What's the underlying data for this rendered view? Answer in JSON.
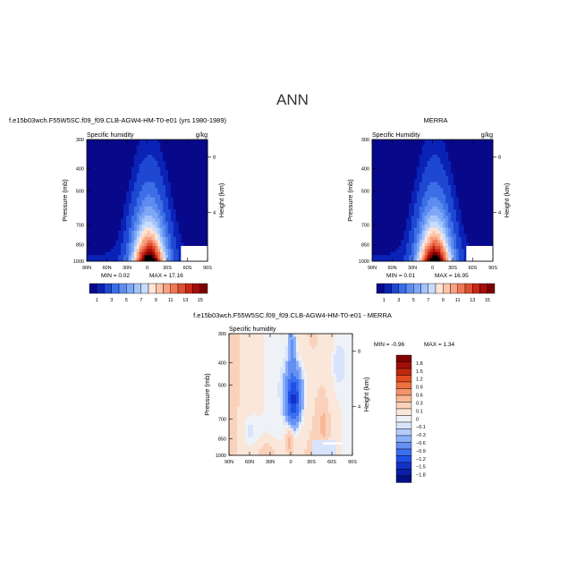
{
  "figure_title": "ANN",
  "colors": {
    "seq": [
      "#08088a",
      "#0a22b6",
      "#1e48d2",
      "#3c6ee6",
      "#5c8cf0",
      "#7ea8f6",
      "#a4c4fa",
      "#c8dcfc",
      "#ffe4d6",
      "#fcc4aa",
      "#f8a080",
      "#f07858",
      "#e05030",
      "#c82818",
      "#a80c0c",
      "#7c0000"
    ],
    "diff": [
      "#040f82",
      "#0a1ea8",
      "#1432c8",
      "#1e50e6",
      "#3c6ef0",
      "#6490f4",
      "#8cb0f8",
      "#b4ccfa",
      "#d8e4fc",
      "#eef2f6",
      "#fbe6da",
      "#fad2bc",
      "#f8b898",
      "#f4946c",
      "#ee7040",
      "#e24c20",
      "#c02810",
      "#a01008",
      "#800000"
    ]
  },
  "chart_data": [
    {
      "type": "heatmap",
      "title": "f.e15b03wch.F55W5SC.f09_f09.CLB-AGW4-HM-T0-e01 (yrs 1980-1989)",
      "subtitle_left": "Specific humidity",
      "subtitle_right": "g/kg",
      "ylabel": "Pressure (mb)",
      "right_label": "Height (km)",
      "x_ticks": [
        "90N",
        "60N",
        "30N",
        "0",
        "30S",
        "60S",
        "90S"
      ],
      "y_ticks": [
        "300",
        "400",
        "500",
        "700",
        "850",
        "1000"
      ],
      "right_ticks": [
        "8",
        "4"
      ],
      "min_label": "MIN = 0.02",
      "max_label": "MAX = 17.16",
      "ylim": [
        1000,
        300
      ],
      "xlim": [
        90,
        -90
      ],
      "peak": 17.16,
      "levels": [
        0.5,
        1,
        2,
        3,
        4,
        5,
        6,
        7,
        8,
        9,
        10,
        11,
        12,
        13,
        14,
        15
      ],
      "colorbar_labels": [
        "1",
        "3",
        "5",
        "7",
        "9",
        "11",
        "13",
        "15"
      ]
    },
    {
      "type": "heatmap",
      "title": "MERRA",
      "subtitle_left": "Specific Humidity",
      "subtitle_right": "g/kg",
      "ylabel": "Pressure (mb)",
      "right_label": "Height (km)",
      "x_ticks": [
        "90N",
        "60N",
        "30N",
        "0",
        "30S",
        "60S",
        "90S"
      ],
      "y_ticks": [
        "300",
        "400",
        "500",
        "700",
        "850",
        "1000"
      ],
      "right_ticks": [
        "8",
        "4"
      ],
      "min_label": "MIN = 0.01",
      "max_label": "MAX = 16.95",
      "ylim": [
        1000,
        300
      ],
      "xlim": [
        90,
        -90
      ],
      "peak": 16.95,
      "levels": [
        0.5,
        1,
        2,
        3,
        4,
        5,
        6,
        7,
        8,
        9,
        10,
        11,
        12,
        13,
        14,
        15
      ],
      "colorbar_labels": [
        "1",
        "3",
        "5",
        "7",
        "9",
        "11",
        "13",
        "15"
      ]
    },
    {
      "type": "heatmap",
      "title": "f.e15b03wch.F55W5SC.f09_f09.CLB-AGW4-HM-T0-e01 - MERRA",
      "subtitle_left": "Specific humidity",
      "ylabel": "Pressure (mb)",
      "right_label": "Height (km)",
      "x_ticks": [
        "90N",
        "60N",
        "30N",
        "0",
        "30S",
        "60S",
        "90S"
      ],
      "y_ticks": [
        "300",
        "400",
        "500",
        "700",
        "850",
        "1000"
      ],
      "right_ticks": [
        "8",
        "4"
      ],
      "min_label": "MIN = -0.96",
      "max_label": "MAX = 1.34",
      "ylim": [
        1000,
        300
      ],
      "xlim": [
        90,
        -90
      ],
      "levels": [
        -1.8,
        -1.5,
        -1.2,
        -0.9,
        -0.6,
        -0.3,
        -0.1,
        0,
        0.1,
        0.3,
        0.6,
        0.9,
        1.2,
        1.5,
        1.8
      ],
      "colorbar_labels": [
        "1.8",
        "1.5",
        "1.2",
        "0.9",
        "0.6",
        "0.3",
        "0.1",
        "0",
        "−0.1",
        "−0.3",
        "−0.6",
        "−0.9",
        "−1.2",
        "−1.5",
        "−1.8"
      ]
    }
  ]
}
